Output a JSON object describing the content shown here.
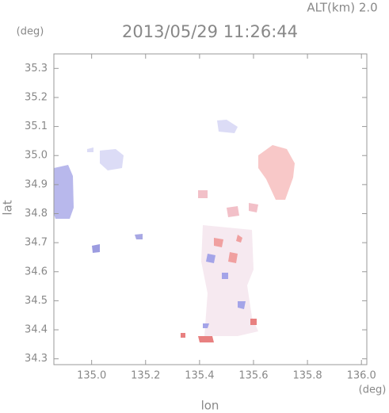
{
  "header": {
    "altitude": "ALT(km) 2.0",
    "y_unit": "(deg)",
    "x_unit": "(deg)"
  },
  "chart_data": {
    "type": "field",
    "title": "2013/05/29 11:26:44",
    "x_label": "lon",
    "y_label": "lat",
    "xlim": [
      134.86,
      136.02
    ],
    "ylim": [
      34.28,
      35.35
    ],
    "xticks": [
      {
        "value": 135,
        "label": "135.0"
      },
      135.2,
      135.4,
      135.6,
      135.8,
      {
        "value": 136,
        "label": "136.0"
      }
    ],
    "yticks": [
      34.3,
      34.4,
      34.5,
      34.6,
      34.7,
      34.8,
      34.9,
      {
        "value": 35,
        "label": "35.0"
      },
      35.1,
      35.2,
      35.3
    ],
    "grid": false
  }
}
